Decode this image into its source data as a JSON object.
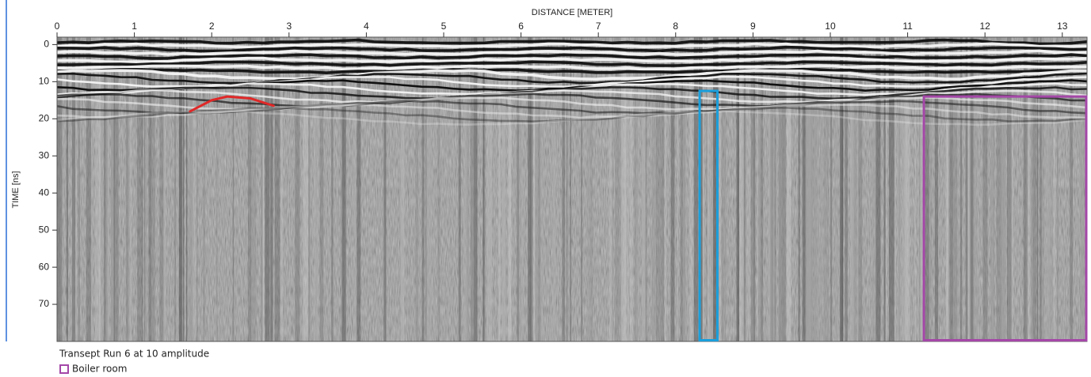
{
  "chart_data": {
    "type": "radargram",
    "x_label": "DISTANCE [METER]",
    "y_label": "TIME [ns]",
    "xlim": [
      0,
      13.32
    ],
    "xticks": [
      0,
      1,
      2,
      3,
      4,
      5,
      6,
      7,
      8,
      9,
      10,
      11,
      12,
      13
    ],
    "ylim": [
      80,
      -2
    ],
    "yticks": [
      0,
      10,
      20,
      30,
      40,
      50,
      60,
      70
    ],
    "caption": "Transept Run 6 at 10 amplitude",
    "curves": [
      {
        "color": "#e02828",
        "x": [
          1.72,
          2.0,
          2.2,
          2.5,
          2.8
        ],
        "y": [
          18,
          15,
          14,
          14.5,
          16.5
        ]
      }
    ],
    "regions": [
      {
        "color": "#1a9fdc",
        "x": [
          8.3,
          8.55
        ],
        "y": [
          12.5,
          80
        ]
      },
      {
        "name": "Boiler room",
        "color": "#a447a8",
        "x": [
          11.2,
          13.32
        ],
        "y": [
          14,
          80
        ]
      }
    ]
  }
}
